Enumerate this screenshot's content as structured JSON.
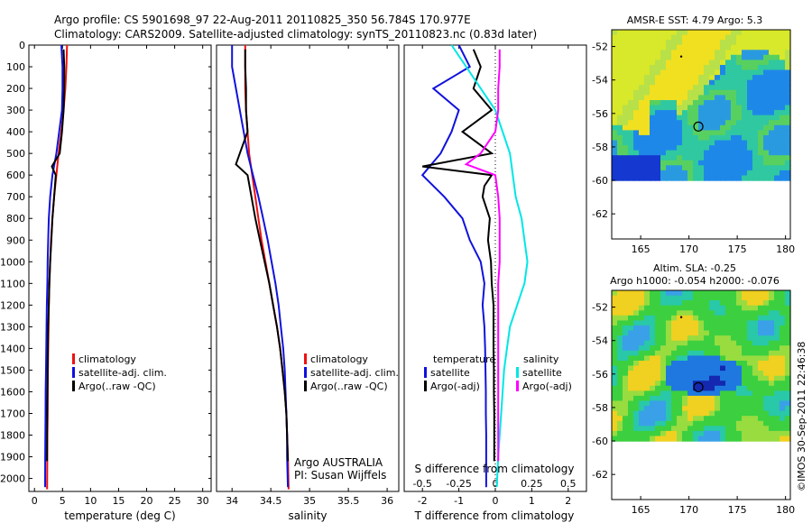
{
  "header": {
    "title": "Argo profile: CS 5901698_97 22-Aug-2011 20110825_350 56.784S 170.977E",
    "subtitle": "Climatology: CARS2009. Satellite-adjusted climatology: synTS_20110823.nc (0.83d later)"
  },
  "footer": {
    "credit": "©IMOS 30-Sep-2011 22:46:38"
  },
  "colors": {
    "climatology": "#ee1111",
    "satellite": "#1111dd",
    "argo": "#000000",
    "satellite_salinity": "#00e6e6",
    "argo_salinity": "#ff00ff"
  },
  "chart_data": [
    {
      "type": "line",
      "xlabel": "temperature (deg C)",
      "xlim": [
        -1,
        31.5
      ],
      "xticks": [
        0,
        5,
        10,
        15,
        20,
        25,
        30
      ],
      "xtick_labels": [
        "0",
        "5",
        "10",
        "15",
        "20",
        "25",
        "30"
      ],
      "ylim": [
        0,
        2060
      ],
      "yticks": [
        0,
        100,
        200,
        300,
        400,
        500,
        600,
        700,
        800,
        900,
        1000,
        1100,
        1200,
        1300,
        1400,
        1500,
        1600,
        1700,
        1800,
        1900,
        2000
      ],
      "ytick_labels": [
        "0",
        "100",
        "200",
        "300",
        "400",
        "500",
        "600",
        "700",
        "800",
        "900",
        "1000",
        "1100",
        "1200",
        "1300",
        "1400",
        "1500",
        "1600",
        "1700",
        "1800",
        "1900",
        "2000"
      ],
      "yreversed": true,
      "legend": [
        "climatology",
        "satellite-adj. clim.",
        "Argo(..raw -QC)"
      ],
      "series": [
        {
          "name": "climatology",
          "color": "#ee1111",
          "x": [
            5.8,
            5.7,
            5.5,
            5.2,
            4.8,
            4.3,
            3.9,
            3.5,
            3.2,
            2.95,
            2.8,
            2.65,
            2.55,
            2.5,
            2.45,
            2.4,
            2.37,
            2.34,
            2.3,
            2.28,
            2.25
          ],
          "y": [
            0,
            100,
            200,
            300,
            400,
            500,
            600,
            700,
            800,
            900,
            1000,
            1100,
            1200,
            1300,
            1400,
            1500,
            1600,
            1700,
            1800,
            1900,
            2050
          ]
        },
        {
          "name": "satellite-adj. clim.",
          "color": "#1111dd",
          "x": [
            4.8,
            5.0,
            5.0,
            4.9,
            4.4,
            3.9,
            3.2,
            2.8,
            2.55,
            2.45,
            2.35,
            2.3,
            2.2,
            2.15,
            2.1,
            2.05,
            2.0,
            1.98,
            1.95,
            1.92,
            1.9
          ],
          "y": [
            0,
            100,
            200,
            300,
            400,
            500,
            600,
            700,
            800,
            900,
            1000,
            1100,
            1200,
            1300,
            1400,
            1500,
            1600,
            1700,
            1800,
            1900,
            2040
          ]
        },
        {
          "name": "Argo(..raw -QC)",
          "color": "#000000",
          "x": [
            5.2,
            5.3,
            5.3,
            5.2,
            4.9,
            4.5,
            3.1,
            3.8,
            3.5,
            3.2,
            3.0,
            2.8,
            2.65,
            2.55,
            2.45,
            2.4,
            2.35,
            2.32,
            2.28,
            2.25,
            2.23
          ],
          "y": [
            20,
            100,
            200,
            300,
            400,
            500,
            560,
            600,
            700,
            800,
            900,
            1000,
            1100,
            1200,
            1300,
            1400,
            1500,
            1600,
            1700,
            1800,
            1920
          ]
        }
      ]
    },
    {
      "type": "line",
      "xlabel": "salinity",
      "xlim": [
        33.8,
        36.15
      ],
      "xticks": [
        34,
        34.5,
        35,
        35.5,
        36
      ],
      "xtick_labels": [
        "34",
        "34.5",
        "35",
        "35.5",
        "36"
      ],
      "legend": [
        "climatology",
        "satellite-adj. clim.",
        "Argo(..raw -QC)"
      ],
      "annotations": [
        "Argo AUSTRALIA",
        "PI: Susan Wijffels"
      ],
      "series": [
        {
          "name": "climatology",
          "color": "#ee1111",
          "x": [
            34.17,
            34.17,
            34.17,
            34.18,
            34.2,
            34.22,
            34.26,
            34.3,
            34.34,
            34.38,
            34.43,
            34.48,
            34.53,
            34.58,
            34.62,
            34.65,
            34.68,
            34.7,
            34.71,
            34.72,
            34.73
          ],
          "y": [
            0,
            100,
            200,
            300,
            400,
            500,
            600,
            700,
            800,
            900,
            1000,
            1100,
            1200,
            1300,
            1400,
            1500,
            1600,
            1700,
            1800,
            1900,
            2050
          ]
        },
        {
          "name": "satellite-adj. clim.",
          "color": "#1111dd",
          "x": [
            34.0,
            34.0,
            34.05,
            34.1,
            34.15,
            34.2,
            34.27,
            34.34,
            34.4,
            34.46,
            34.51,
            34.56,
            34.6,
            34.63,
            34.66,
            34.68,
            34.69,
            34.7,
            34.71,
            34.71,
            34.72
          ],
          "y": [
            0,
            100,
            200,
            300,
            400,
            500,
            600,
            700,
            800,
            900,
            1000,
            1100,
            1200,
            1300,
            1400,
            1500,
            1600,
            1700,
            1800,
            1900,
            2040
          ]
        },
        {
          "name": "Argo(..raw -QC)",
          "color": "#000000",
          "x": [
            34.17,
            34.17,
            34.18,
            34.18,
            34.2,
            34.1,
            34.05,
            34.2,
            34.25,
            34.3,
            34.36,
            34.42,
            34.48,
            34.53,
            34.58,
            34.62,
            34.65,
            34.68,
            34.7,
            34.71,
            34.72
          ],
          "y": [
            20,
            100,
            200,
            300,
            400,
            500,
            550,
            600,
            700,
            800,
            900,
            1000,
            1100,
            1200,
            1300,
            1400,
            1500,
            1600,
            1700,
            1800,
            1920
          ]
        }
      ]
    },
    {
      "type": "line",
      "xlabel": "T difference from climatology",
      "secondary_xlabel": "S difference from climatology",
      "xlim": [
        -2.5,
        2.5
      ],
      "xticks": [
        -2,
        -1,
        0,
        1,
        2
      ],
      "xtick_labels": [
        "-2",
        "-1",
        "0",
        "1",
        "2"
      ],
      "s_ticks": [
        -0.5,
        -0.25,
        0,
        0.25,
        0.5
      ],
      "s_tick_labels": [
        "-0.5",
        "-0.25",
        "0",
        "0.25",
        "0.5"
      ],
      "legend": {
        "temperature_heading": "temperature",
        "salinity_heading": "salinity",
        "temperature": [
          "satellite",
          "Argo(-adj)"
        ],
        "salinity": [
          "satellite",
          "Argo(-adj)"
        ]
      },
      "series": [
        {
          "name": "satellite",
          "group": "temperature",
          "color": "#1111dd",
          "x": [
            -1.0,
            -0.7,
            -1.7,
            -1.0,
            -1.2,
            -1.5,
            -2.0,
            -1.4,
            -0.9,
            -0.7,
            -0.4,
            -0.3,
            -0.35,
            -0.3,
            -0.28,
            -0.27,
            -0.26,
            -0.26,
            -0.25,
            -0.25,
            -0.25
          ],
          "y": [
            0,
            100,
            200,
            300,
            400,
            500,
            600,
            700,
            800,
            900,
            1000,
            1100,
            1200,
            1300,
            1400,
            1500,
            1600,
            1700,
            1800,
            1900,
            2040
          ]
        },
        {
          "name": "Argo(-adj)",
          "group": "temperature",
          "color": "#000000",
          "x": [
            -0.6,
            -0.4,
            -0.6,
            -0.1,
            -0.9,
            -0.1,
            -2.0,
            -0.1,
            -0.3,
            -0.35,
            -0.15,
            -0.2,
            -0.12,
            -0.1,
            -0.05,
            -0.05,
            -0.05,
            -0.04,
            -0.04,
            -0.03,
            -0.03,
            -0.03,
            -0.03
          ],
          "y": [
            20,
            100,
            200,
            300,
            400,
            500,
            560,
            600,
            650,
            700,
            800,
            900,
            1000,
            1100,
            1200,
            1300,
            1400,
            1500,
            1600,
            1700,
            1800,
            1900,
            1920
          ]
        },
        {
          "name": "satellite",
          "group": "salinity",
          "color": "#00e6e6",
          "x": [
            -0.3,
            -0.2,
            -0.1,
            0,
            0.05,
            0.1,
            0.12,
            0.14,
            0.18,
            0.2,
            0.22,
            0.2,
            0.15,
            0.1,
            0.08,
            0.06,
            0.05,
            0.04,
            0.03,
            0.02,
            0.01
          ],
          "y": [
            0,
            100,
            200,
            300,
            400,
            500,
            600,
            700,
            800,
            900,
            1000,
            1100,
            1200,
            1300,
            1400,
            1500,
            1600,
            1700,
            1800,
            1900,
            2040
          ]
        },
        {
          "name": "Argo(-adj)",
          "group": "salinity",
          "color": "#ff00ff",
          "x": [
            0.03,
            0.03,
            0.02,
            0.02,
            0.0,
            -0.1,
            -0.2,
            0.0,
            0.02,
            0.03,
            0.03,
            0.03,
            0.02,
            0.02,
            0.02,
            0.02,
            0.02,
            0.02,
            0.02,
            0.02,
            0.02
          ],
          "y": [
            20,
            100,
            200,
            300,
            400,
            500,
            550,
            600,
            700,
            800,
            900,
            1000,
            1100,
            1200,
            1300,
            1400,
            1500,
            1600,
            1700,
            1800,
            1920
          ]
        }
      ]
    },
    {
      "type": "heatmap",
      "title": "AMSR-E SST: 4.79 Argo: 5.3",
      "xlim": [
        162,
        180.5
      ],
      "ylim": [
        -63.5,
        -51
      ],
      "xticks": [
        165,
        170,
        175,
        180
      ],
      "yticks": [
        -52,
        -54,
        -56,
        -58,
        -60,
        -62
      ],
      "xtick_labels": [
        "165",
        "170",
        "175",
        "180"
      ],
      "ytick_labels": [
        "-52",
        "-54",
        "-56",
        "-58",
        "-60",
        "-62"
      ],
      "data_bottom_lat": -60,
      "profile_location": {
        "lon": 170.977,
        "lat": -56.784
      }
    },
    {
      "type": "heatmap",
      "title": "Altim. SLA: -0.25",
      "subtitle": "Argo h1000: -0.054 h2000: -0.076",
      "xlim": [
        162,
        180.5
      ],
      "ylim": [
        -63.5,
        -51
      ],
      "xticks": [
        165,
        170,
        175,
        180
      ],
      "yticks": [
        -52,
        -54,
        -56,
        -58,
        -60,
        -62
      ],
      "xtick_labels": [
        "165",
        "170",
        "175",
        "180"
      ],
      "ytick_labels": [
        "-52",
        "-54",
        "-56",
        "-58",
        "-60",
        "-62"
      ],
      "data_bottom_lat": -60,
      "profile_location": {
        "lon": 170.977,
        "lat": -56.784
      }
    }
  ]
}
